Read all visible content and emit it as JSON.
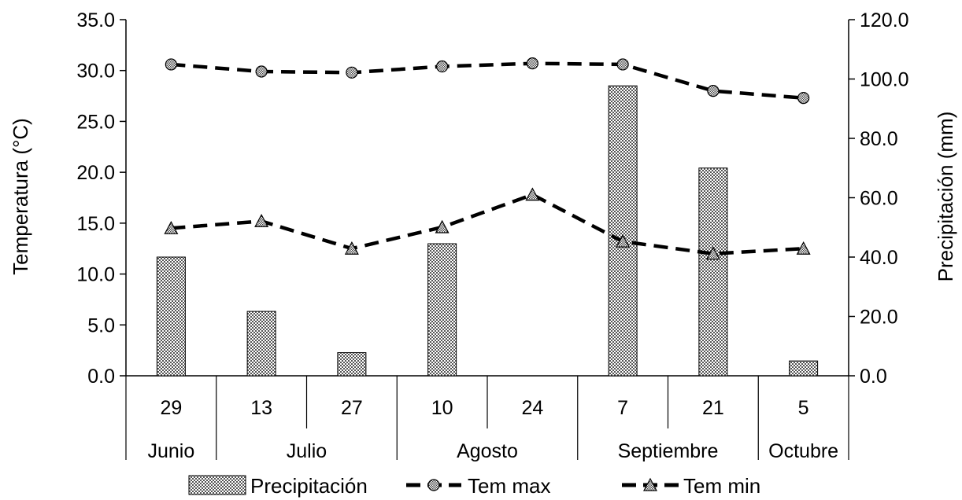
{
  "chart_data": {
    "type": "bar+line",
    "categories": [
      "29",
      "13",
      "27",
      "10",
      "24",
      "7",
      "21",
      "5"
    ],
    "months": [
      {
        "label": "Junio",
        "span": 1
      },
      {
        "label": "Julio",
        "span": 2
      },
      {
        "label": "Agosto",
        "span": 2
      },
      {
        "label": "Septiembre",
        "span": 2
      },
      {
        "label": "Octubre",
        "span": 1
      }
    ],
    "ylabel_left": "Temperatura (°C)",
    "ylabel_right": "Precipitación (mm)",
    "ylim_left": [
      0,
      35
    ],
    "ylim_right": [
      0,
      120
    ],
    "y_ticks_left": [
      "0.0",
      "5.0",
      "10.0",
      "15.0",
      "20.0",
      "25.0",
      "30.0",
      "35.0"
    ],
    "y_ticks_right": [
      "0.0",
      "20.0",
      "40.0",
      "60.0",
      "80.0",
      "100.0",
      "120.0"
    ],
    "bar_series": {
      "name": "Precipitación",
      "axis": "right",
      "values": [
        40.0,
        21.7,
        7.8,
        44.5,
        0,
        97.7,
        70.0,
        5.0
      ]
    },
    "line_series": [
      {
        "name": "Tem max",
        "axis": "left",
        "marker": "circle-x",
        "values": [
          30.6,
          29.9,
          29.8,
          30.4,
          30.7,
          30.6,
          28.0,
          27.3
        ]
      },
      {
        "name": "Tem min",
        "axis": "left",
        "marker": "triangle",
        "values": [
          14.5,
          15.2,
          12.5,
          14.6,
          17.8,
          13.2,
          12.0,
          12.5
        ]
      }
    ],
    "legend_position": "bottom",
    "grid": false
  }
}
